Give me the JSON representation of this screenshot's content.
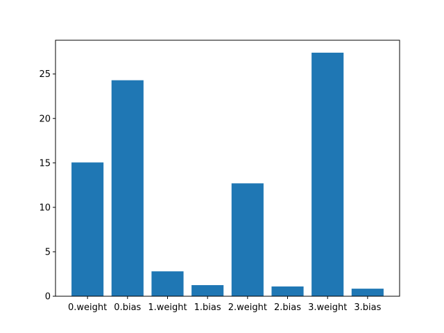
{
  "chart_data": {
    "type": "bar",
    "title": "",
    "xlabel": "",
    "ylabel": "",
    "categories": [
      "0.weight",
      "0.bias",
      "1.weight",
      "1.bias",
      "2.weight",
      "2.bias",
      "3.weight",
      "3.bias"
    ],
    "values": [
      15.05,
      24.3,
      2.8,
      1.25,
      12.7,
      1.1,
      27.4,
      0.85
    ],
    "ylim": [
      0,
      28.8
    ],
    "yticks": [
      0,
      5,
      10,
      15,
      20,
      25
    ],
    "grid": false,
    "legend": "none",
    "bar_color": "#1f77b4"
  }
}
